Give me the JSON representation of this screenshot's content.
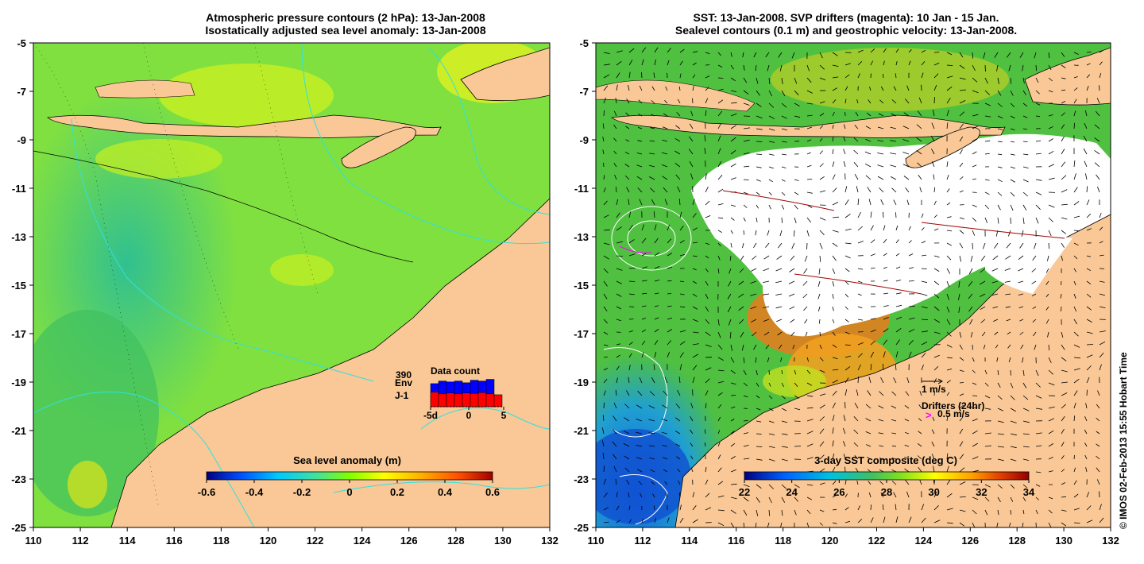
{
  "left_panel": {
    "title_line1": "Atmospheric pressure contours (2 hPa): 13-Jan-2008",
    "title_line2": "Isostatically adjusted sea level anomaly: 13-Jan-2008",
    "colorbar_label": "Sea level anomaly (m)",
    "colorbar_ticks": [
      "-0.6",
      "-0.4",
      "-0.2",
      "0",
      "0.2",
      "0.4",
      "0.6"
    ],
    "inset": {
      "title": "Data count",
      "max_label": "390",
      "series": [
        {
          "name": "Env",
          "color": "#0000ff",
          "values": [
            270,
            300,
            290,
            300,
            280,
            310,
            300,
            320
          ]
        },
        {
          "name": "J-1",
          "color": "#ff0000",
          "values": [
            170,
            150,
            160,
            150,
            160,
            155,
            165,
            150,
            140
          ]
        }
      ],
      "x_ticks": [
        "-5d",
        "0",
        "5"
      ]
    }
  },
  "right_panel": {
    "title_line1": "SST: 13-Jan-2008. SVP drifters (magenta): 10 Jan - 15 Jan.",
    "title_line2": "Sealevel contours (0.1 m) and geostrophic velocity: 13-Jan-2008.",
    "colorbar_label": "3-day SST composite (deg C)",
    "colorbar_ticks": [
      "22",
      "24",
      "26",
      "28",
      "30",
      "32",
      "34"
    ],
    "legend_vector": "1 m/s",
    "legend_drifters_title": "Drifters (24hr)",
    "legend_drifters_speed": "0.5 m/s",
    "legend_drifters_glyph": ">"
  },
  "axes": {
    "x_ticks": [
      "110",
      "112",
      "114",
      "116",
      "118",
      "120",
      "122",
      "124",
      "126",
      "128",
      "130",
      "132"
    ],
    "y_ticks": [
      "-5",
      "-7",
      "-9",
      "-11",
      "-13",
      "-15",
      "-17",
      "-19",
      "-21",
      "-23",
      "-25"
    ]
  },
  "colors": {
    "land": "#f9c896",
    "sla_colormap": [
      "#000080",
      "#0050ff",
      "#00c8ff",
      "#40e0a0",
      "#80ff00",
      "#ffff00",
      "#ffb000",
      "#ff5000",
      "#a00000"
    ],
    "sst_colormap": [
      "#000080",
      "#0060ff",
      "#00c0e0",
      "#40c060",
      "#80e020",
      "#ffff00",
      "#ffa000",
      "#e04000",
      "#900000"
    ]
  },
  "credit": "© IMOS 02-Feb-2013 15:55 Hobart Time"
}
